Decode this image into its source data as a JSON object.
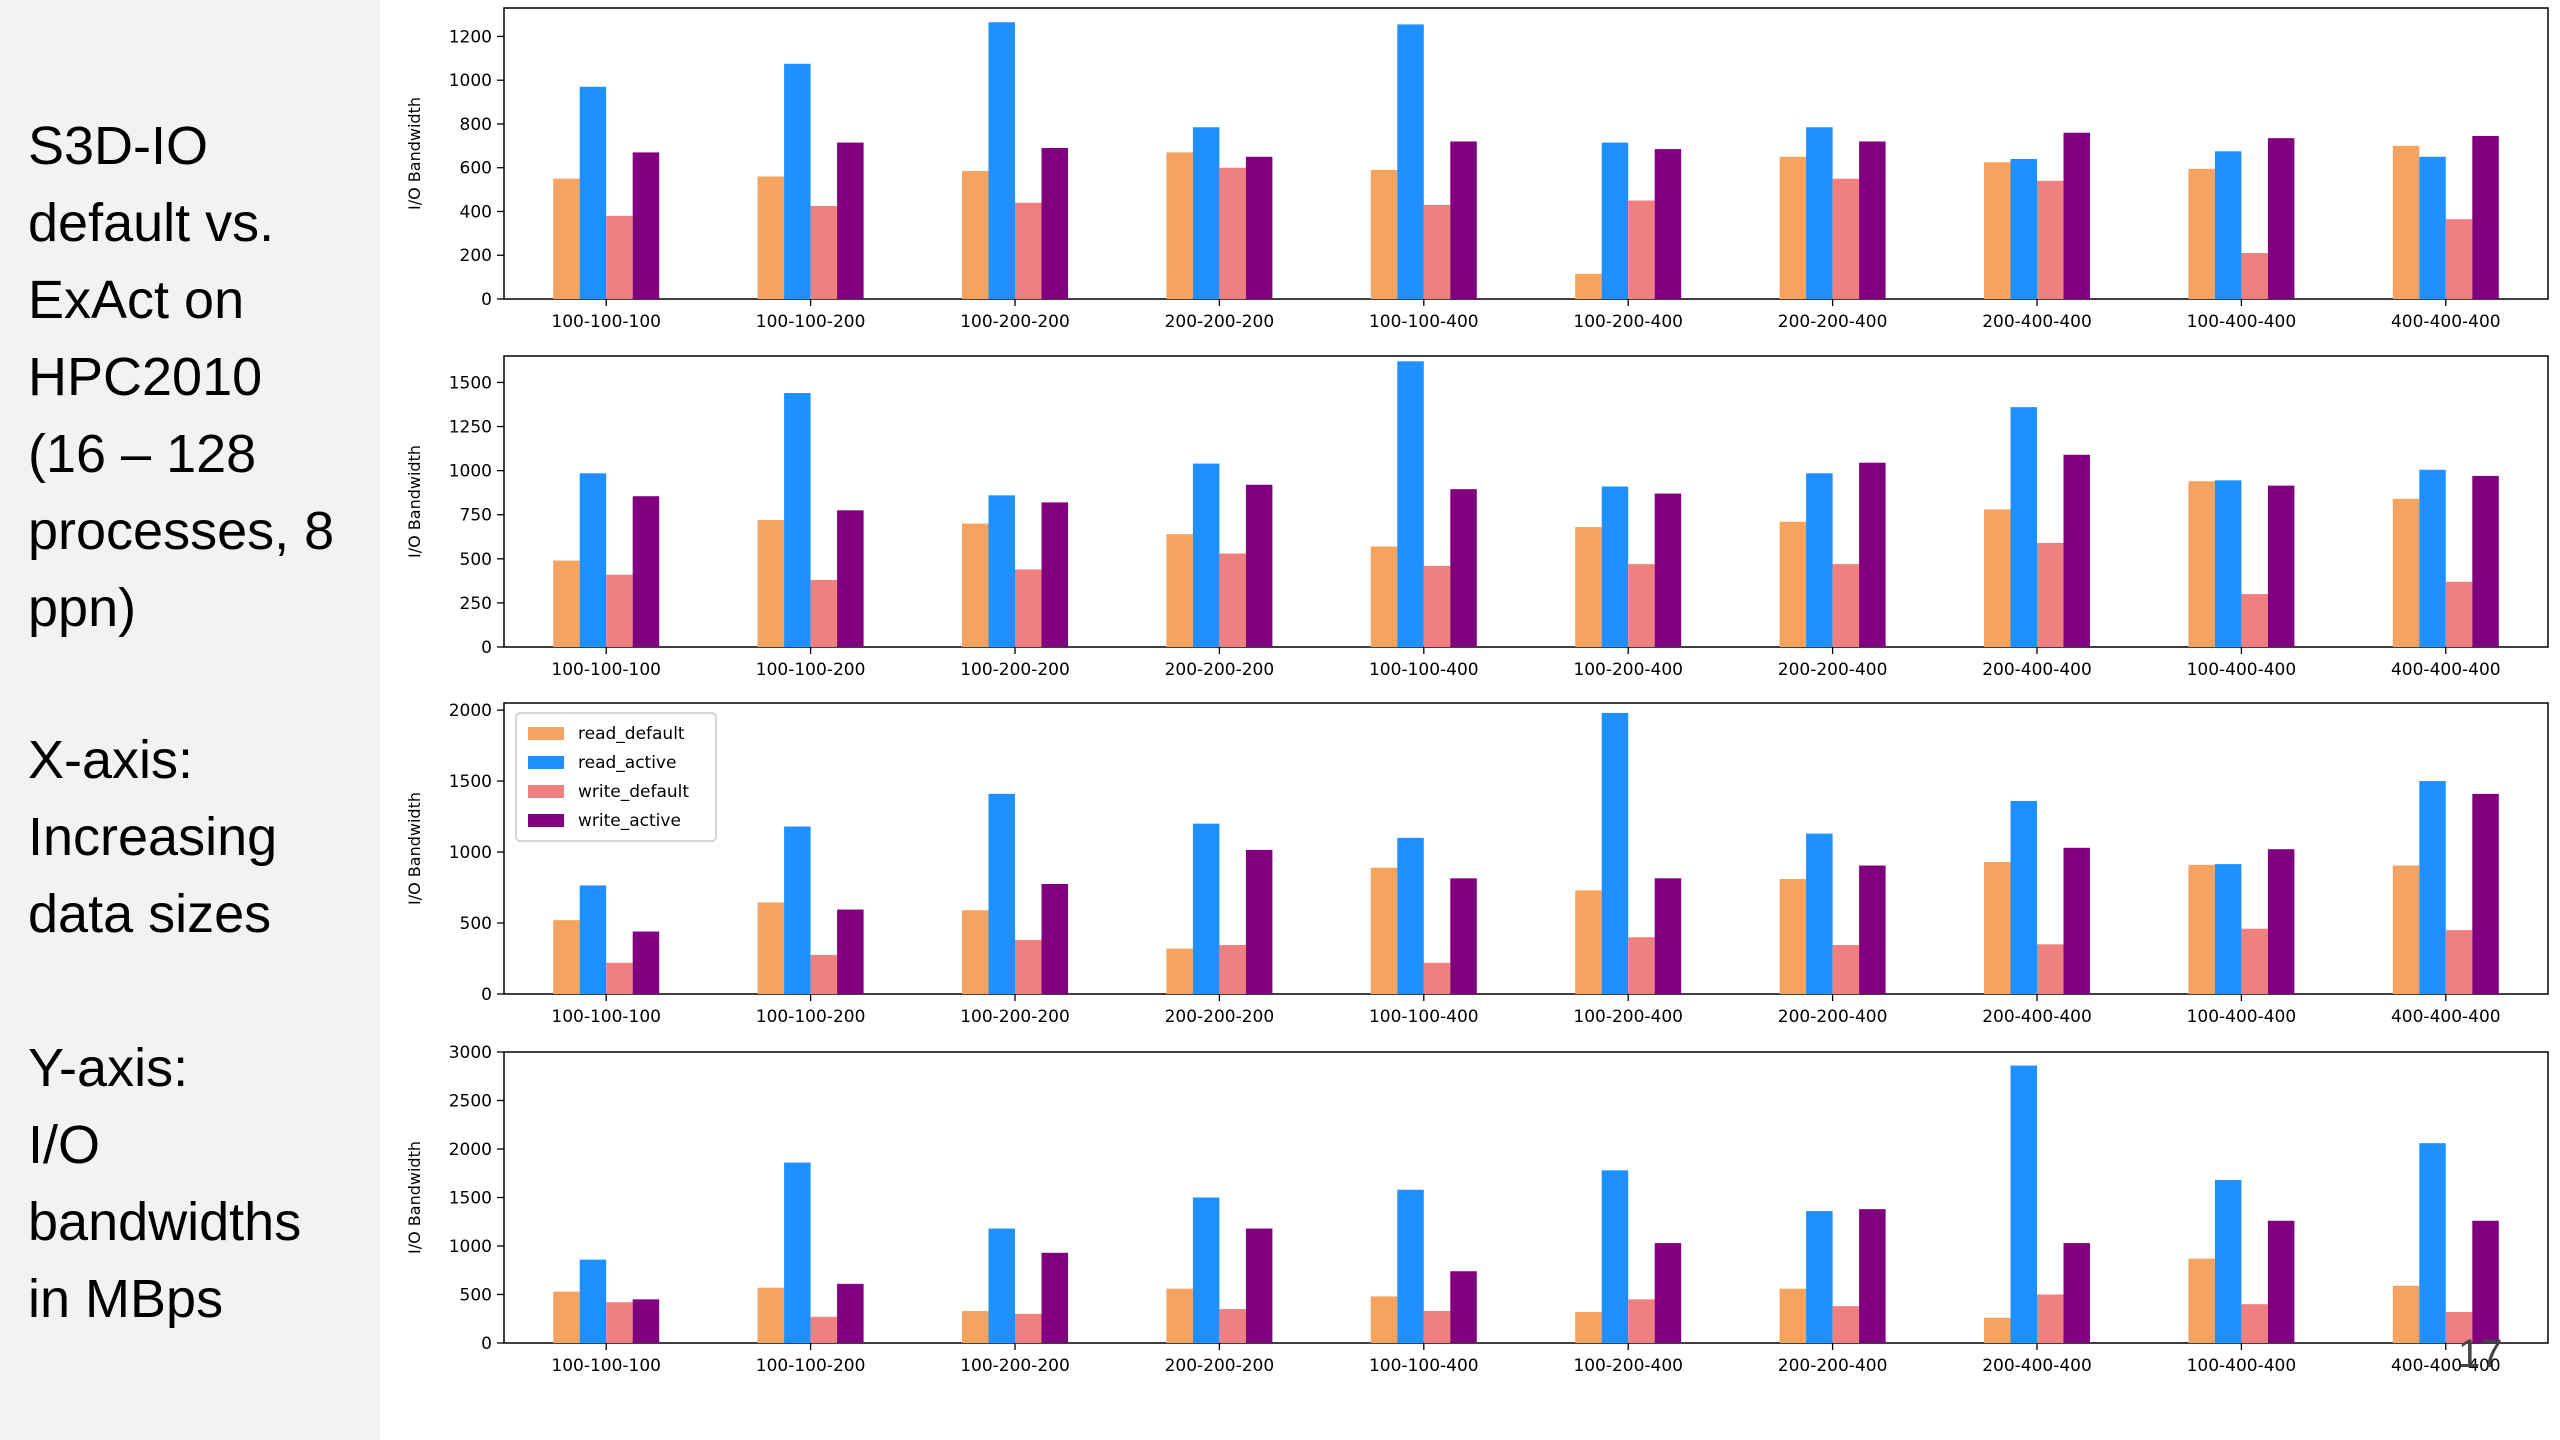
{
  "sidebar": {
    "text1": "S3D-IO\ndefault vs.\nExAct on\nHPC2010\n(16 – 128\nprocesses, 8\nppn)",
    "text2": "X-axis:\nIncreasing\ndata sizes",
    "text3": "Y-axis:\nI/O\nbandwidths\nin MBps"
  },
  "page_number": "17",
  "series_colors": {
    "read_default": "#f4a460",
    "read_active": "#1e90ff",
    "write_default": "#f08080",
    "write_active": "#800080"
  },
  "chart_data": [
    {
      "type": "bar",
      "ylabel": "I/O Bandwidth",
      "ylim": [
        0,
        1330
      ],
      "yticks": [
        0,
        200,
        400,
        600,
        800,
        1000,
        1200
      ],
      "categories": [
        "100-100-100",
        "100-100-200",
        "100-200-200",
        "200-200-200",
        "100-100-400",
        "100-200-400",
        "200-200-400",
        "200-400-400",
        "100-400-400",
        "400-400-400"
      ],
      "legend": false,
      "series": [
        {
          "key": "read_default",
          "values": [
            550,
            560,
            585,
            670,
            590,
            115,
            650,
            625,
            595,
            700
          ]
        },
        {
          "key": "read_active",
          "values": [
            970,
            1075,
            1265,
            785,
            1255,
            715,
            785,
            640,
            675,
            650
          ]
        },
        {
          "key": "write_default",
          "values": [
            380,
            425,
            440,
            600,
            430,
            450,
            550,
            540,
            210,
            365
          ]
        },
        {
          "key": "write_active",
          "values": [
            670,
            715,
            690,
            650,
            720,
            685,
            720,
            760,
            735,
            745
          ]
        }
      ]
    },
    {
      "type": "bar",
      "ylabel": "I/O Bandwidth",
      "ylim": [
        0,
        1650
      ],
      "yticks": [
        0,
        250,
        500,
        750,
        1000,
        1250,
        1500
      ],
      "categories": [
        "100-100-100",
        "100-100-200",
        "100-200-200",
        "200-200-200",
        "100-100-400",
        "100-200-400",
        "200-200-400",
        "200-400-400",
        "100-400-400",
        "400-400-400"
      ],
      "legend": false,
      "series": [
        {
          "key": "read_default",
          "values": [
            490,
            720,
            700,
            640,
            570,
            680,
            710,
            780,
            940,
            840
          ]
        },
        {
          "key": "read_active",
          "values": [
            985,
            1440,
            860,
            1040,
            1620,
            910,
            985,
            1360,
            945,
            1005
          ]
        },
        {
          "key": "write_default",
          "values": [
            410,
            380,
            440,
            530,
            460,
            470,
            470,
            590,
            300,
            370
          ]
        },
        {
          "key": "write_active",
          "values": [
            855,
            775,
            820,
            920,
            895,
            870,
            1045,
            1090,
            915,
            970
          ]
        }
      ]
    },
    {
      "type": "bar",
      "ylabel": "I/O Bandwidth",
      "ylim": [
        0,
        2050
      ],
      "yticks": [
        0,
        500,
        1000,
        1500,
        2000
      ],
      "categories": [
        "100-100-100",
        "100-100-200",
        "100-200-200",
        "200-200-200",
        "100-100-400",
        "100-200-400",
        "200-200-400",
        "200-400-400",
        "100-400-400",
        "400-400-400"
      ],
      "legend": true,
      "legend_labels": [
        "read_default",
        "read_active",
        "write_default",
        "write_active"
      ],
      "legend_position": "top-left",
      "series": [
        {
          "key": "read_default",
          "values": [
            520,
            645,
            590,
            320,
            890,
            730,
            810,
            930,
            910,
            905
          ]
        },
        {
          "key": "read_active",
          "values": [
            765,
            1180,
            1410,
            1200,
            1100,
            1980,
            1130,
            1360,
            915,
            1500
          ]
        },
        {
          "key": "write_default",
          "values": [
            220,
            275,
            380,
            345,
            220,
            400,
            345,
            350,
            460,
            450
          ]
        },
        {
          "key": "write_active",
          "values": [
            440,
            595,
            775,
            1015,
            815,
            815,
            905,
            1030,
            1020,
            1410
          ]
        }
      ]
    },
    {
      "type": "bar",
      "ylabel": "I/O Bandwidth",
      "ylim": [
        0,
        3000
      ],
      "yticks": [
        0,
        500,
        1000,
        1500,
        2000,
        2500,
        3000
      ],
      "categories": [
        "100-100-100",
        "100-100-200",
        "100-200-200",
        "200-200-200",
        "100-100-400",
        "100-200-400",
        "200-200-400",
        "200-400-400",
        "100-400-400",
        "400-400-400"
      ],
      "legend": false,
      "series": [
        {
          "key": "read_default",
          "values": [
            530,
            570,
            330,
            560,
            480,
            320,
            560,
            260,
            870,
            590
          ]
        },
        {
          "key": "read_active",
          "values": [
            860,
            1860,
            1180,
            1500,
            1580,
            1780,
            1360,
            2860,
            1680,
            2060
          ]
        },
        {
          "key": "write_default",
          "values": [
            420,
            270,
            300,
            350,
            330,
            450,
            380,
            500,
            400,
            320
          ]
        },
        {
          "key": "write_active",
          "values": [
            450,
            610,
            930,
            1180,
            740,
            1030,
            1380,
            1030,
            1260,
            1260
          ]
        }
      ]
    }
  ]
}
